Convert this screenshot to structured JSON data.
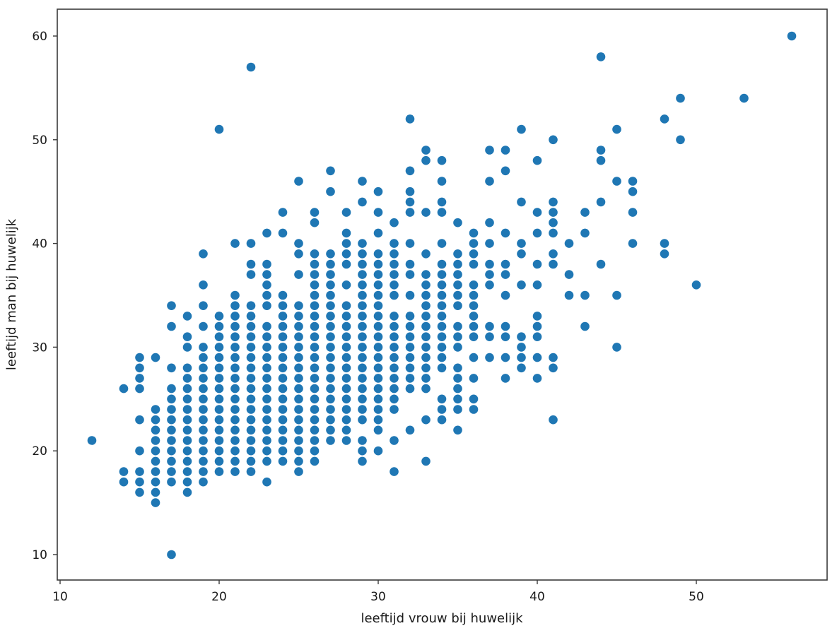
{
  "chart_data": {
    "type": "scatter",
    "title": "",
    "xlabel": "leeftijd vrouw bij huwelijk",
    "ylabel": "leeftijd man bij huwelijk",
    "xlim": [
      9.8,
      58.2
    ],
    "ylim": [
      7.4,
      62.8
    ],
    "xticks": [
      10,
      20,
      30,
      40,
      50
    ],
    "yticks": [
      10,
      20,
      30,
      40,
      50,
      60
    ],
    "grid": false,
    "legend": null,
    "marker_color": "#1f77b4",
    "columns": [
      {
        "x": 12,
        "y": [
          21
        ]
      },
      {
        "x": 14,
        "y": [
          26,
          18,
          17
        ]
      },
      {
        "x": 15,
        "y": [
          29,
          28,
          27,
          26,
          23,
          20,
          18,
          17,
          16
        ]
      },
      {
        "x": 16,
        "y": [
          29,
          24,
          23,
          22,
          21,
          20,
          19,
          18,
          17,
          16,
          15
        ]
      },
      {
        "x": 17,
        "y": [
          34,
          32,
          28,
          26,
          25,
          24,
          23,
          22,
          21,
          20,
          19,
          18,
          17,
          10
        ]
      },
      {
        "x": 18,
        "y": [
          33,
          31,
          30,
          28,
          27,
          26,
          25,
          24,
          23,
          22,
          21,
          20,
          19,
          18,
          17,
          16
        ]
      },
      {
        "x": 19,
        "y": [
          39,
          36,
          34,
          32,
          30,
          29,
          28,
          27,
          26,
          25,
          24,
          23,
          22,
          21,
          20,
          19,
          18,
          17
        ]
      },
      {
        "x": 20,
        "y": [
          51,
          33,
          32,
          31,
          30,
          29,
          28,
          27,
          26,
          25,
          24,
          23,
          22,
          21,
          20,
          19,
          18
        ]
      },
      {
        "x": 21,
        "y": [
          40,
          35,
          34,
          33,
          32,
          31,
          30,
          29,
          28,
          27,
          26,
          25,
          24,
          23,
          22,
          21,
          20,
          19,
          18
        ]
      },
      {
        "x": 22,
        "y": [
          57,
          40,
          38,
          37,
          34,
          33,
          32,
          31,
          30,
          29,
          28,
          27,
          26,
          25,
          24,
          23,
          22,
          21,
          20,
          19,
          18
        ]
      },
      {
        "x": 23,
        "y": [
          41,
          38,
          37,
          36,
          35,
          34,
          32,
          31,
          30,
          29,
          28,
          27,
          26,
          25,
          24,
          23,
          22,
          21,
          20,
          19,
          17
        ]
      },
      {
        "x": 24,
        "y": [
          43,
          41,
          35,
          34,
          33,
          32,
          31,
          30,
          29,
          28,
          27,
          26,
          25,
          24,
          23,
          22,
          21,
          20,
          19
        ]
      },
      {
        "x": 25,
        "y": [
          46,
          40,
          39,
          37,
          34,
          33,
          32,
          31,
          30,
          29,
          28,
          27,
          26,
          25,
          24,
          23,
          22,
          21,
          20,
          19,
          18
        ]
      },
      {
        "x": 26,
        "y": [
          43,
          42,
          39,
          38,
          37,
          36,
          35,
          34,
          33,
          32,
          31,
          30,
          29,
          28,
          27,
          26,
          25,
          24,
          23,
          22,
          21,
          20,
          19
        ]
      },
      {
        "x": 27,
        "y": [
          47,
          45,
          39,
          38,
          37,
          36,
          35,
          34,
          33,
          32,
          31,
          30,
          29,
          28,
          27,
          26,
          25,
          24,
          23,
          22,
          21
        ]
      },
      {
        "x": 28,
        "y": [
          43,
          41,
          40,
          39,
          38,
          36,
          34,
          33,
          32,
          31,
          30,
          29,
          28,
          27,
          26,
          25,
          24,
          23,
          22,
          21
        ]
      },
      {
        "x": 29,
        "y": [
          46,
          44,
          40,
          39,
          38,
          37,
          36,
          35,
          34,
          33,
          32,
          31,
          30,
          29,
          28,
          27,
          26,
          25,
          24,
          23,
          21,
          20,
          19
        ]
      },
      {
        "x": 30,
        "y": [
          45,
          43,
          41,
          39,
          38,
          37,
          36,
          35,
          34,
          33,
          32,
          31,
          30,
          29,
          28,
          27,
          26,
          25,
          24,
          23,
          22,
          20
        ]
      },
      {
        "x": 31,
        "y": [
          42,
          40,
          39,
          38,
          37,
          36,
          35,
          33,
          32,
          31,
          30,
          29,
          28,
          27,
          26,
          25,
          24,
          21,
          18
        ]
      },
      {
        "x": 32,
        "y": [
          52,
          47,
          45,
          44,
          43,
          40,
          38,
          37,
          35,
          33,
          32,
          31,
          30,
          29,
          28,
          27,
          26,
          22
        ]
      },
      {
        "x": 33,
        "y": [
          49,
          48,
          43,
          39,
          37,
          36,
          35,
          34,
          33,
          32,
          31,
          30,
          29,
          28,
          27,
          26,
          23,
          19
        ]
      },
      {
        "x": 34,
        "y": [
          48,
          46,
          44,
          43,
          40,
          38,
          37,
          36,
          35,
          34,
          33,
          32,
          31,
          30,
          29,
          28,
          25,
          24,
          23
        ]
      },
      {
        "x": 35,
        "y": [
          42,
          39,
          38,
          37,
          36,
          35,
          34,
          32,
          31,
          30,
          28,
          27,
          26,
          25,
          24,
          22
        ]
      },
      {
        "x": 36,
        "y": [
          41,
          40,
          39,
          38,
          36,
          35,
          34,
          33,
          32,
          31,
          29,
          27,
          25,
          24
        ]
      },
      {
        "x": 37,
        "y": [
          49,
          46,
          42,
          40,
          38,
          37,
          36,
          32,
          31,
          29
        ]
      },
      {
        "x": 38,
        "y": [
          49,
          47,
          41,
          38,
          37,
          35,
          32,
          31,
          29,
          27
        ]
      },
      {
        "x": 39,
        "y": [
          51,
          44,
          40,
          39,
          36,
          31,
          30,
          29,
          28
        ]
      },
      {
        "x": 40,
        "y": [
          48,
          43,
          41,
          38,
          36,
          33,
          32,
          31,
          29,
          27
        ]
      },
      {
        "x": 41,
        "y": [
          50,
          44,
          43,
          42,
          41,
          39,
          38,
          29,
          28,
          23
        ]
      },
      {
        "x": 42,
        "y": [
          40,
          37,
          35
        ]
      },
      {
        "x": 43,
        "y": [
          43,
          41,
          35,
          32
        ]
      },
      {
        "x": 44,
        "y": [
          58,
          49,
          48,
          44,
          38
        ]
      },
      {
        "x": 45,
        "y": [
          51,
          46,
          35,
          30
        ]
      },
      {
        "x": 46,
        "y": [
          46,
          45,
          43,
          40
        ]
      },
      {
        "x": 48,
        "y": [
          52,
          40,
          39
        ]
      },
      {
        "x": 49,
        "y": [
          54,
          50
        ]
      },
      {
        "x": 50,
        "y": [
          36
        ]
      },
      {
        "x": 53,
        "y": [
          54
        ]
      },
      {
        "x": 56,
        "y": [
          60
        ]
      }
    ]
  },
  "axes": {
    "xlabel": "leeftijd vrouw bij huwelijk",
    "ylabel": "leeftijd man bij huwelijk",
    "xtick_labels": [
      "10",
      "20",
      "30",
      "40",
      "50"
    ],
    "ytick_labels": [
      "10",
      "20",
      "30",
      "40",
      "50",
      "60"
    ]
  }
}
